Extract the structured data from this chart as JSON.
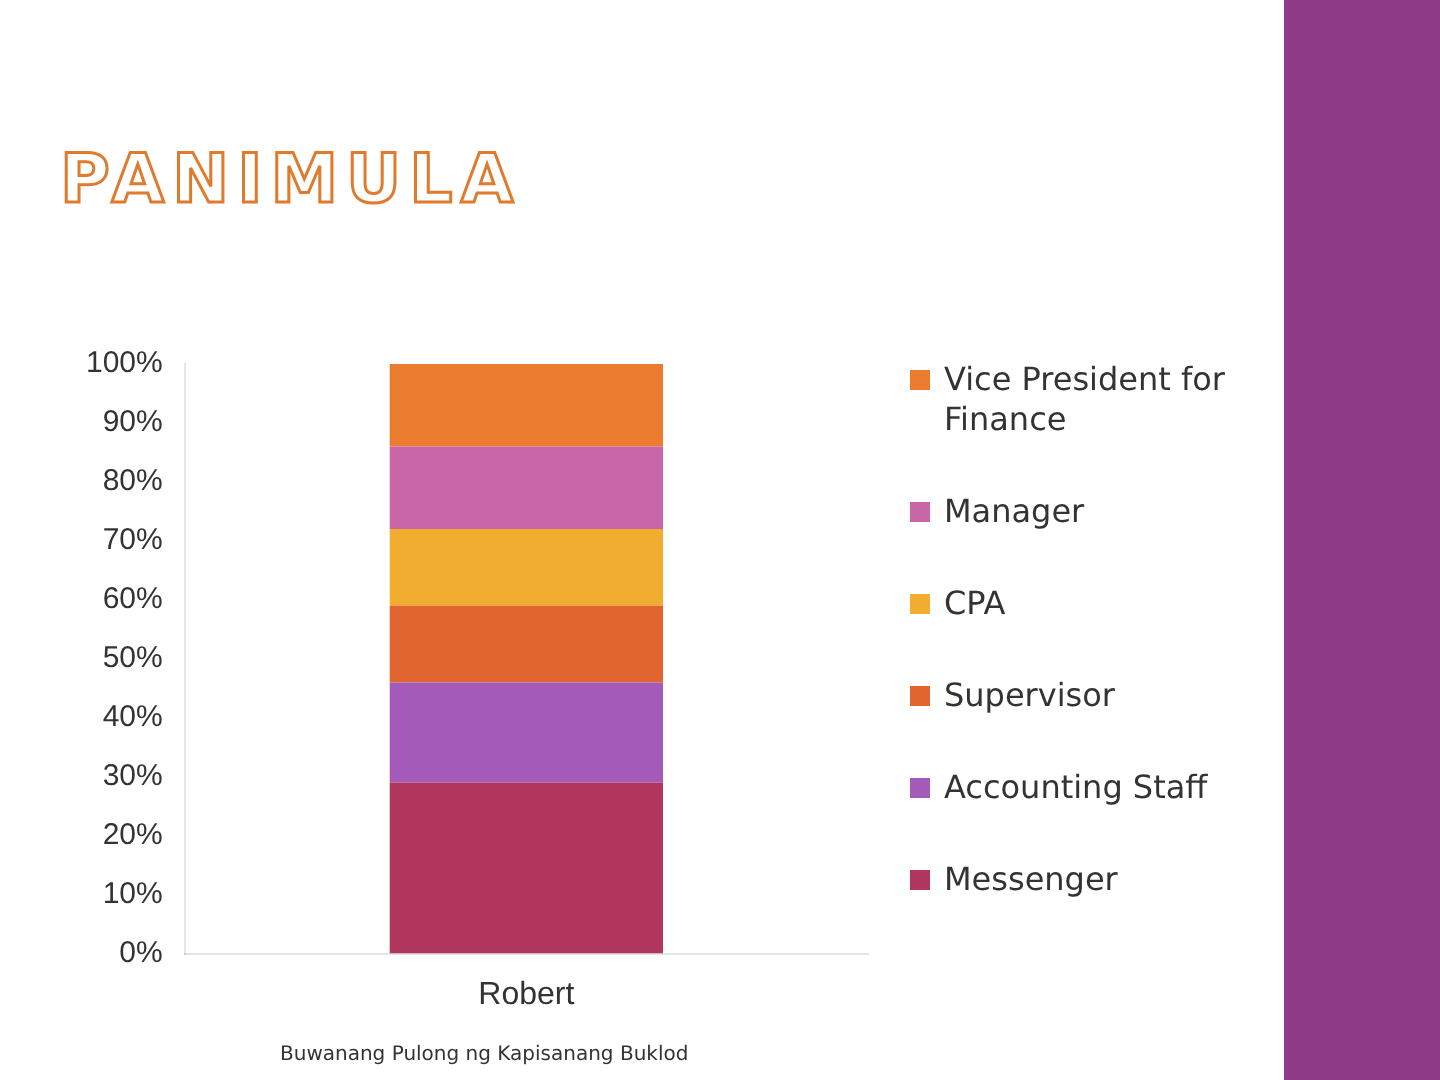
{
  "chart_data": {
    "type": "bar",
    "title": "PANIMULA",
    "categories": [
      "Robert"
    ],
    "stacked": true,
    "series": [
      {
        "name": "Messenger",
        "color": "#b0365e",
        "values": [
          29
        ]
      },
      {
        "name": "Accounting Staff",
        "color": "#a45ab8",
        "values": [
          17
        ]
      },
      {
        "name": "Supervisor",
        "color": "#e0652f",
        "values": [
          13
        ]
      },
      {
        "name": "CPA",
        "color": "#f0ad30",
        "values": [
          13
        ]
      },
      {
        "name": "Manager",
        "color": "#c966a8",
        "values": [
          14
        ]
      },
      {
        "name": "Vice President for Finance",
        "color": "#eb7b2e",
        "values": [
          14
        ]
      }
    ],
    "ylim": [
      0,
      100
    ],
    "yticks": [
      {
        "value": 0,
        "label": "0%"
      },
      {
        "value": 10,
        "label": "10%"
      },
      {
        "value": 20,
        "label": "20%"
      },
      {
        "value": 30,
        "label": "30%"
      },
      {
        "value": 40,
        "label": "40%"
      },
      {
        "value": 50,
        "label": "50%"
      },
      {
        "value": 60,
        "label": "60%"
      },
      {
        "value": 70,
        "label": "70%"
      },
      {
        "value": 80,
        "label": "80%"
      },
      {
        "value": 90,
        "label": "90%"
      },
      {
        "value": 100,
        "label": "100%"
      }
    ],
    "grid": false,
    "legend": "right",
    "annotations": [
      "Buwanang Pulong ng Kapisanang Buklod"
    ]
  }
}
